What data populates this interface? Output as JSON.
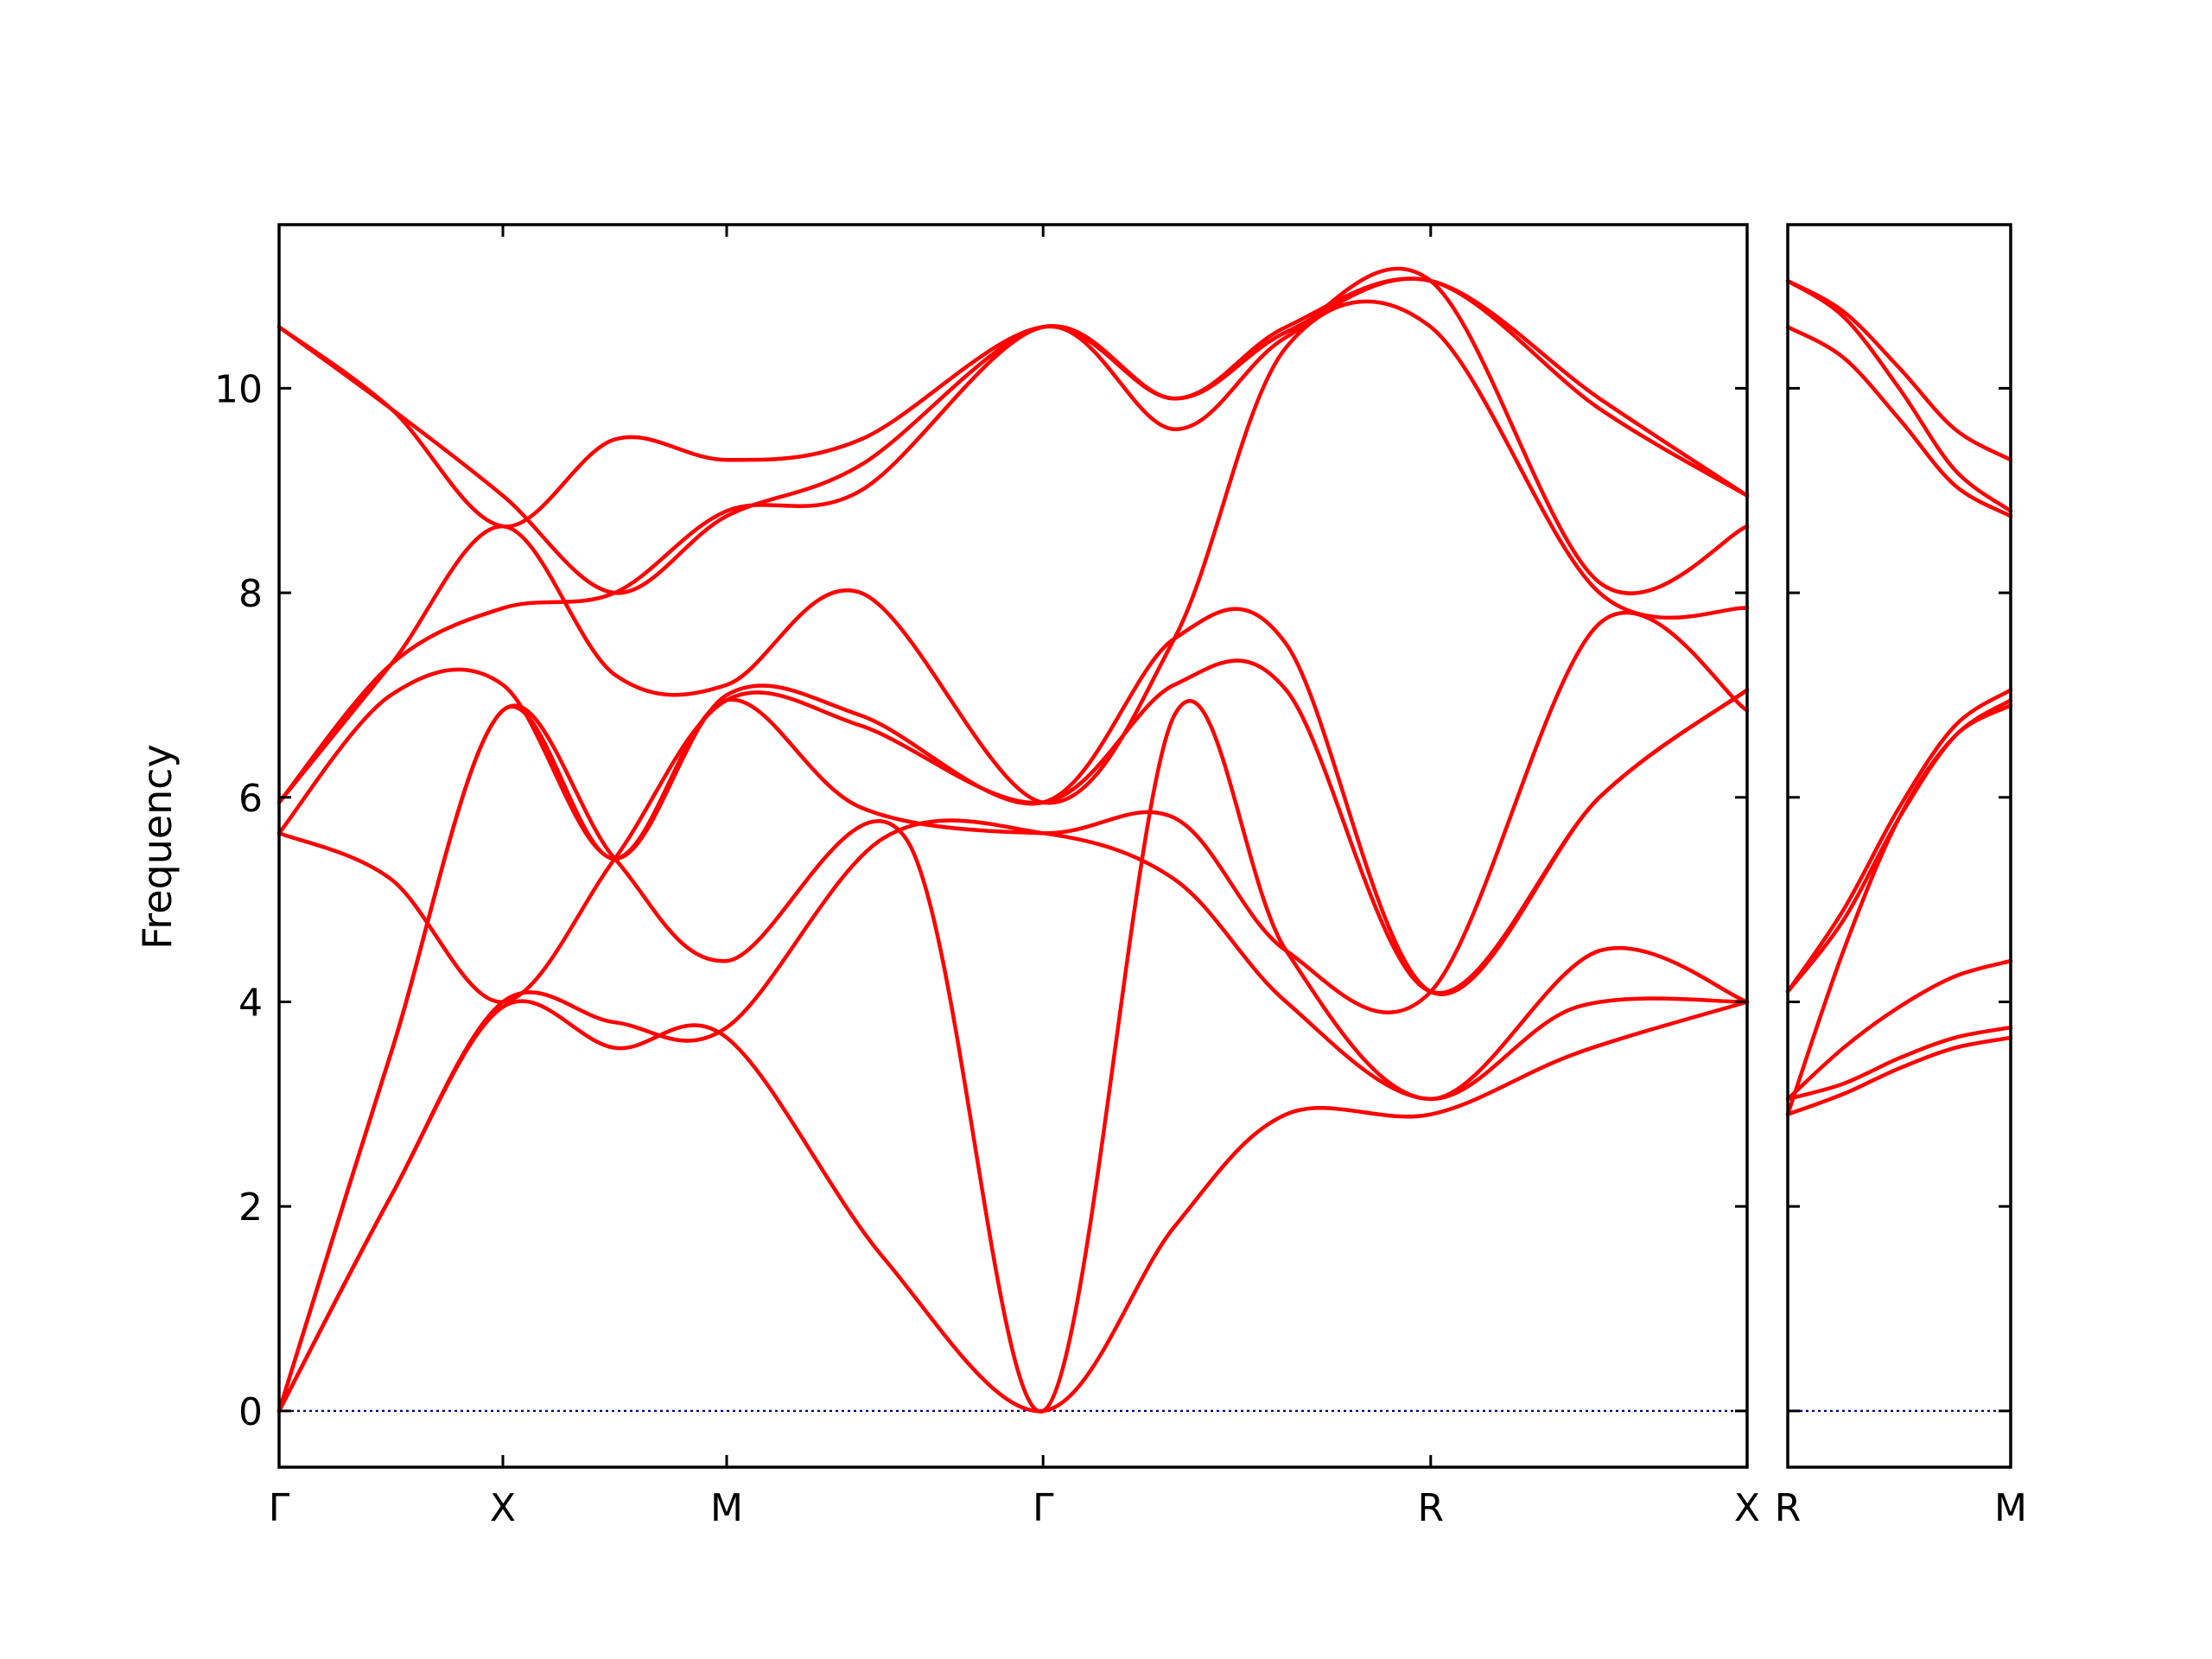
{
  "chart_data": {
    "type": "line",
    "ylabel": "Frequency",
    "ylim": [
      -0.55,
      11.6
    ],
    "yticks": [
      0,
      2,
      4,
      6,
      8,
      10
    ],
    "colors": {
      "bands": "#ff0000",
      "zero_line": "#00008b",
      "frame": "#000000"
    },
    "panels": [
      {
        "xticks": [
          {
            "x": 0,
            "label": "Γ"
          },
          {
            "x": 1,
            "label": "X"
          },
          {
            "x": 2,
            "label": "M"
          },
          {
            "x": 3.414,
            "label": "Γ"
          },
          {
            "x": 5.146,
            "label": "R"
          },
          {
            "x": 6.56,
            "label": "X"
          }
        ],
        "xlim": [
          0,
          6.56
        ],
        "series": [
          {
            "x": [
              0,
              0.5,
              1.0,
              1.5,
              2.0,
              2.7,
              3.414,
              4.0,
              4.5,
              5.146,
              5.8,
              6.56
            ],
            "y": [
              0,
              2.1,
              3.95,
              3.55,
              3.65,
              1.5,
              0,
              1.8,
              2.9,
              2.9,
              3.5,
              4.0
            ]
          },
          {
            "x": [
              0,
              0.5,
              1.0,
              1.5,
              2.0,
              2.7,
              3.414,
              4.0,
              4.5,
              5.146,
              5.8,
              6.56
            ],
            "y": [
              0,
              2.1,
              4.0,
              3.8,
              3.75,
              5.6,
              5.65,
              5.2,
              4.0,
              3.05,
              3.95,
              4.0
            ]
          },
          {
            "x": [
              0,
              0.5,
              1.0,
              1.5,
              2.0,
              2.8,
              3.414,
              4.0,
              4.5,
              5.146,
              5.9,
              6.56
            ],
            "y": [
              0,
              3.5,
              6.85,
              5.4,
              4.4,
              5.6,
              0,
              6.8,
              4.5,
              3.05,
              4.5,
              4.0
            ]
          },
          {
            "x": [
              0,
              0.5,
              1.0,
              1.5,
              2.0,
              2.6,
              3.414,
              4.0,
              4.5,
              5.146,
              5.9,
              6.56
            ],
            "y": [
              0,
              3.5,
              6.85,
              5.4,
              6.95,
              5.9,
              5.65,
              5.8,
              4.5,
              4.1,
              7.7,
              6.85
            ]
          },
          {
            "x": [
              0,
              0.5,
              1.0,
              1.5,
              2.0,
              2.6,
              3.414,
              4.0,
              4.5,
              5.146,
              5.9,
              6.56
            ],
            "y": [
              5.65,
              5.2,
              4.0,
              5.4,
              6.95,
              6.7,
              5.95,
              7.1,
              7.05,
              4.1,
              6.0,
              7.05
            ]
          },
          {
            "x": [
              0,
              0.5,
              1.0,
              1.5,
              2.0,
              2.6,
              3.414,
              4.0,
              4.5,
              5.146,
              5.9,
              6.56
            ],
            "y": [
              5.65,
              7.0,
              7.1,
              5.4,
              7.0,
              6.8,
              5.95,
              7.55,
              7.5,
              4.1,
              6.0,
              7.05
            ]
          },
          {
            "x": [
              0,
              0.5,
              1.0,
              1.5,
              2.0,
              2.6,
              3.414,
              4.0,
              4.5,
              5.146,
              5.9,
              6.56
            ],
            "y": [
              5.95,
              7.3,
              8.65,
              7.2,
              7.1,
              8.0,
              5.95,
              7.55,
              10.4,
              10.6,
              8.0,
              7.85
            ]
          },
          {
            "x": [
              0,
              0.5,
              1.0,
              1.5,
              2.0,
              2.6,
              3.414,
              4.0,
              4.5,
              5.146,
              5.9,
              6.56
            ],
            "y": [
              5.95,
              7.3,
              7.85,
              8.0,
              8.8,
              9.0,
              10.6,
              9.6,
              10.5,
              11.05,
              8.1,
              8.65
            ]
          },
          {
            "x": [
              0,
              0.5,
              1.0,
              1.5,
              2.0,
              2.6,
              3.414,
              4.0,
              4.5,
              5.146,
              5.9,
              6.56
            ],
            "y": [
              10.6,
              9.8,
              8.95,
              8.0,
              8.75,
              9.25,
              10.6,
              9.9,
              10.55,
              11.05,
              9.8,
              8.95
            ]
          },
          {
            "x": [
              0,
              0.5,
              1.0,
              1.5,
              2.0,
              2.6,
              3.414,
              4.0,
              4.5,
              5.146,
              5.9,
              6.56
            ],
            "y": [
              10.6,
              9.8,
              8.65,
              9.5,
              9.3,
              9.5,
              10.6,
              9.9,
              10.6,
              11.05,
              9.9,
              8.95
            ]
          }
        ]
      },
      {
        "xticks": [
          {
            "x": 0,
            "label": "R"
          },
          {
            "x": 1,
            "label": "M"
          }
        ],
        "xlim": [
          0,
          1
        ],
        "series": [
          {
            "x": [
              0,
              0.25,
              0.5,
              0.75,
              1.0
            ],
            "y": [
              2.9,
              3.1,
              3.35,
              3.55,
              3.65
            ]
          },
          {
            "x": [
              0,
              0.25,
              0.5,
              0.75,
              1.0
            ],
            "y": [
              3.05,
              3.2,
              3.45,
              3.65,
              3.75
            ]
          },
          {
            "x": [
              0,
              0.25,
              0.5,
              0.75,
              1.0
            ],
            "y": [
              3.05,
              3.55,
              3.95,
              4.25,
              4.4
            ]
          },
          {
            "x": [
              0,
              0.25,
              0.5,
              0.75,
              1.0
            ],
            "y": [
              2.9,
              4.5,
              5.8,
              6.6,
              6.9
            ]
          },
          {
            "x": [
              0,
              0.25,
              0.5,
              0.75,
              1.0
            ],
            "y": [
              4.1,
              4.8,
              5.8,
              6.6,
              6.95
            ]
          },
          {
            "x": [
              0,
              0.25,
              0.5,
              0.75,
              1.0
            ],
            "y": [
              4.1,
              4.9,
              5.9,
              6.7,
              7.05
            ]
          },
          {
            "x": [
              0,
              0.25,
              0.5,
              0.75,
              1.0
            ],
            "y": [
              10.6,
              10.3,
              9.7,
              9.05,
              8.75
            ]
          },
          {
            "x": [
              0,
              0.25,
              0.5,
              0.75,
              1.0
            ],
            "y": [
              11.05,
              10.7,
              10.0,
              9.2,
              8.8
            ]
          },
          {
            "x": [
              0,
              0.25,
              0.5,
              0.75,
              1.0
            ],
            "y": [
              11.05,
              10.75,
              10.2,
              9.6,
              9.3
            ]
          }
        ]
      }
    ]
  }
}
